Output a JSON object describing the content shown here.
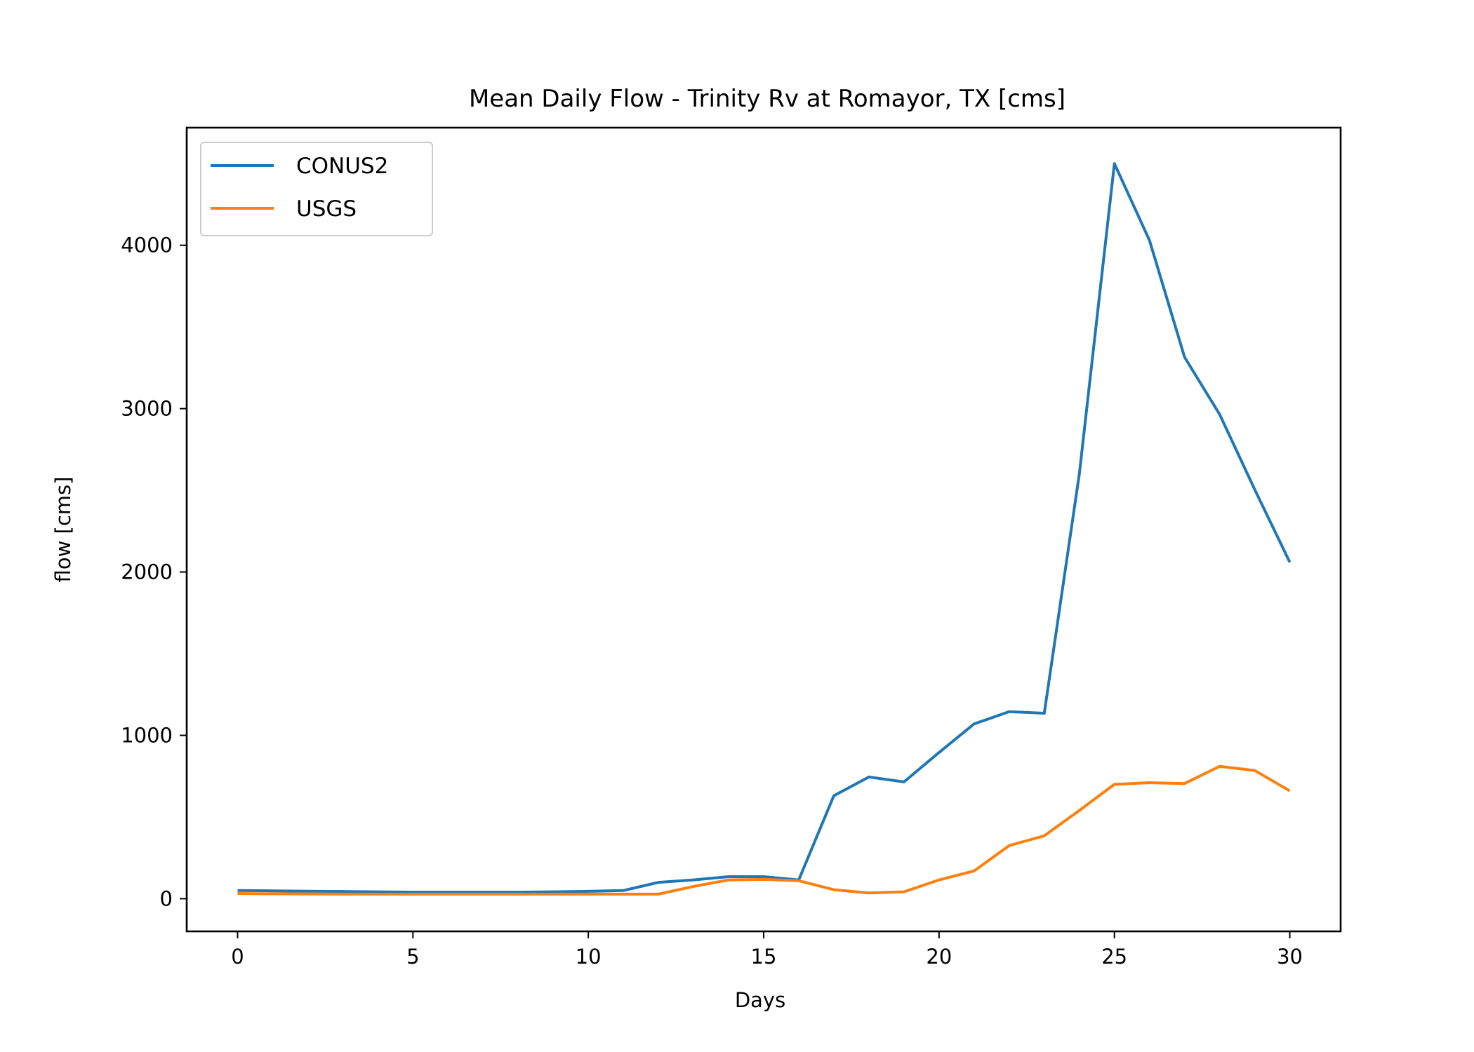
{
  "chart_data": {
    "type": "line",
    "title": "Mean Daily Flow - Trinity Rv at Romayor, TX [cms]",
    "xlabel": "Days",
    "ylabel": "flow [cms]",
    "xlim": [
      -1.45,
      31.45
    ],
    "ylim": [
      -200,
      4720
    ],
    "xticks": [
      0,
      5,
      10,
      15,
      20,
      25,
      30
    ],
    "yticks": [
      0,
      1000,
      2000,
      3000,
      4000
    ],
    "grid": false,
    "legend": "upper left",
    "x": [
      0,
      1,
      2,
      3,
      4,
      5,
      6,
      7,
      8,
      9,
      10,
      11,
      12,
      13,
      14,
      15,
      16,
      17,
      18,
      19,
      20,
      21,
      22,
      23,
      24,
      25,
      26,
      27,
      28,
      29,
      30
    ],
    "series": [
      {
        "name": "CONUS2",
        "color": "#1f77b4",
        "values": [
          50,
          48,
          46,
          44,
          42,
          40,
          40,
          40,
          40,
          42,
          45,
          50,
          100,
          115,
          135,
          135,
          115,
          630,
          745,
          715,
          895,
          1070,
          1145,
          1135,
          2600,
          4500,
          4030,
          3315,
          2965,
          2505,
          2060
        ]
      },
      {
        "name": "USGS",
        "color": "#ff7f0e",
        "values": [
          32,
          30,
          29,
          28,
          28,
          28,
          28,
          28,
          28,
          28,
          28,
          28,
          28,
          75,
          115,
          118,
          110,
          55,
          35,
          42,
          115,
          170,
          325,
          385,
          540,
          700,
          710,
          705,
          810,
          785,
          660
        ]
      }
    ]
  }
}
